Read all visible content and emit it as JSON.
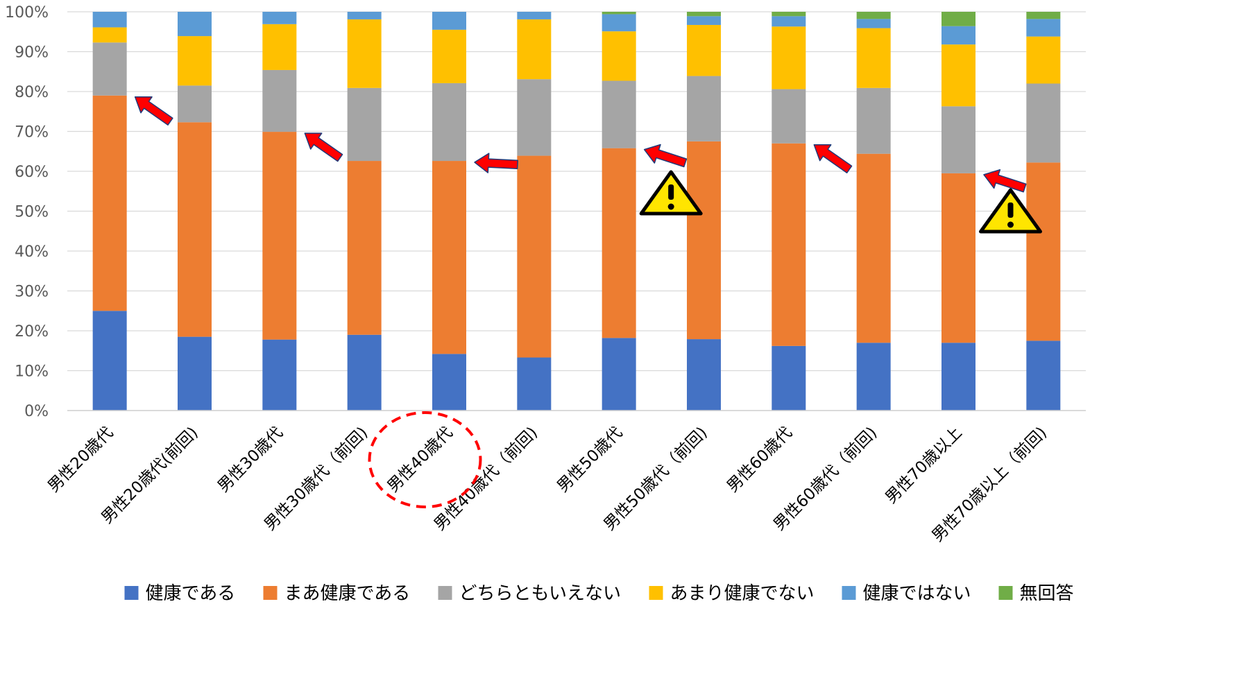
{
  "chart_data": {
    "type": "bar",
    "stacked": true,
    "categories": [
      "男性20歳代",
      "男性20歳代(前回)",
      "男性30歳代",
      "男性30歳代（前回)",
      "男性40歳代",
      "男性40歳代（前回)",
      "男性50歳代",
      "男性50歳代（前回)",
      "男性60歳代",
      "男性60歳代（前回)",
      "男性70歳以上",
      "男性70歳以上（前回)"
    ],
    "series": [
      {
        "name": "健康である",
        "color": "#4472C4",
        "values": [
          25.0,
          18.5,
          17.8,
          19.0,
          14.2,
          13.3,
          18.2,
          17.9,
          16.2,
          17.0,
          17.0,
          17.5
        ]
      },
      {
        "name": "まあ健康である",
        "color": "#ED7D31",
        "values": [
          54.0,
          53.8,
          52.1,
          43.6,
          48.4,
          50.6,
          47.6,
          49.6,
          50.8,
          47.4,
          42.5,
          44.7
        ]
      },
      {
        "name": "どちらともいえない",
        "color": "#A5A5A5",
        "values": [
          13.3,
          9.2,
          15.5,
          18.3,
          19.5,
          19.2,
          16.9,
          16.4,
          13.6,
          16.5,
          16.8,
          19.8
        ]
      },
      {
        "name": "あまり健康でない",
        "color": "#FFC000",
        "values": [
          3.8,
          12.4,
          11.5,
          17.2,
          13.4,
          15.0,
          12.4,
          12.8,
          15.7,
          15.0,
          15.5,
          11.8
        ]
      },
      {
        "name": "健康ではない",
        "color": "#5B9BD5",
        "values": [
          3.9,
          6.1,
          3.1,
          1.9,
          4.5,
          1.9,
          4.3,
          2.2,
          2.6,
          2.3,
          4.6,
          4.4
        ]
      },
      {
        "name": "無回答",
        "color": "#70AD47",
        "values": [
          0,
          0,
          0,
          0,
          0,
          0,
          0.6,
          1.1,
          1.1,
          1.8,
          3.6,
          1.8
        ]
      }
    ],
    "yticks": [
      "0%",
      "10%",
      "20%",
      "30%",
      "40%",
      "50%",
      "60%",
      "70%",
      "80%",
      "90%",
      "100%"
    ],
    "ylim": [
      0,
      100
    ],
    "grid": true,
    "legend_position": "bottom",
    "annotations": {
      "arrows_at_categories": [
        0,
        2,
        4,
        6,
        8,
        10
      ],
      "warning_icons_at_categories": [
        6,
        10
      ],
      "dashed_circle_around_category": 4,
      "arrow_color": "#FF0000",
      "warning_color": "#FFE500"
    }
  }
}
